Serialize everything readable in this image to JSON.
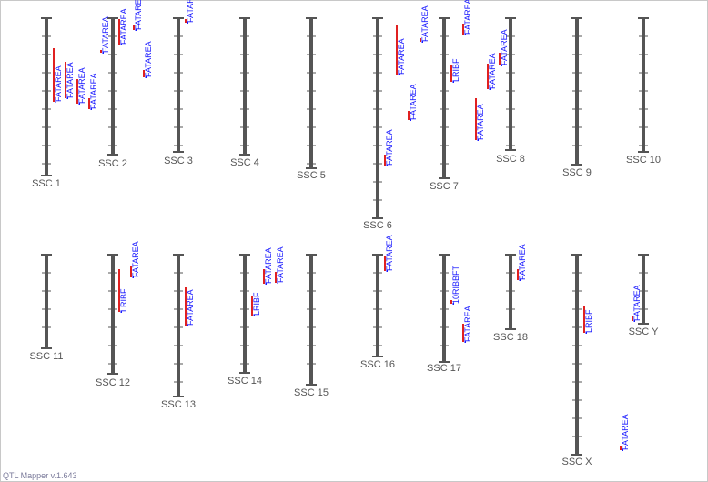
{
  "app": {
    "version_label": "QTL Mapper v.1.643"
  },
  "colors": {
    "chromosome": "#555555",
    "qtl_bar": "#e02020",
    "qtl_text": "#1a1aff"
  },
  "chromosomes": [
    {
      "label": "SSC 1",
      "qtls": [
        {
          "trait": "FATAREA"
        },
        {
          "trait": "FATAREA"
        },
        {
          "trait": "FATAREA"
        },
        {
          "trait": "FATAREA"
        }
      ]
    },
    {
      "label": "SSC 2",
      "qtls": [
        {
          "trait": "FATAREA"
        },
        {
          "trait": "FATAREA"
        },
        {
          "trait": "FATAREA"
        },
        {
          "trait": "FATAREA"
        }
      ]
    },
    {
      "label": "SSC 3",
      "qtls": [
        {
          "trait": "FATAREA"
        }
      ]
    },
    {
      "label": "SSC 4",
      "qtls": []
    },
    {
      "label": "SSC 5",
      "qtls": []
    },
    {
      "label": "SSC 6",
      "qtls": [
        {
          "trait": "FATAREA"
        },
        {
          "trait": "FATAREA"
        },
        {
          "trait": "FATAREA"
        },
        {
          "trait": "FATAREA"
        }
      ]
    },
    {
      "label": "SSC 7",
      "qtls": [
        {
          "trait": "LRIBF"
        },
        {
          "trait": "FATAREA"
        }
      ]
    },
    {
      "label": "SSC 8",
      "qtls": [
        {
          "trait": "FATAREA"
        },
        {
          "trait": "FATAREA"
        },
        {
          "trait": "FATAREA"
        }
      ]
    },
    {
      "label": "SSC 9",
      "qtls": []
    },
    {
      "label": "SSC 10",
      "qtls": []
    },
    {
      "label": "SSC 11",
      "qtls": []
    },
    {
      "label": "SSC 12",
      "qtls": [
        {
          "trait": "LRIBF"
        },
        {
          "trait": "FATAREA"
        }
      ]
    },
    {
      "label": "SSC 13",
      "qtls": [
        {
          "trait": "FATAREA"
        }
      ]
    },
    {
      "label": "SSC 14",
      "qtls": [
        {
          "trait": "LRIBF"
        },
        {
          "trait": "FATAREA"
        },
        {
          "trait": "FATAREA"
        }
      ]
    },
    {
      "label": "SSC 15",
      "qtls": []
    },
    {
      "label": "SSC 16",
      "qtls": [
        {
          "trait": "FATAREA"
        }
      ]
    },
    {
      "label": "SSC 17",
      "qtls": [
        {
          "trait": "10RIBBFT"
        },
        {
          "trait": "FATAREA"
        }
      ]
    },
    {
      "label": "SSC 18",
      "qtls": [
        {
          "trait": "FATAREA"
        }
      ]
    },
    {
      "label": "SSC X",
      "qtls": [
        {
          "trait": "LRIBF"
        },
        {
          "trait": "FATAREA"
        }
      ]
    },
    {
      "label": "SSC Y",
      "qtls": [
        {
          "trait": "FATAREA"
        }
      ]
    }
  ]
}
